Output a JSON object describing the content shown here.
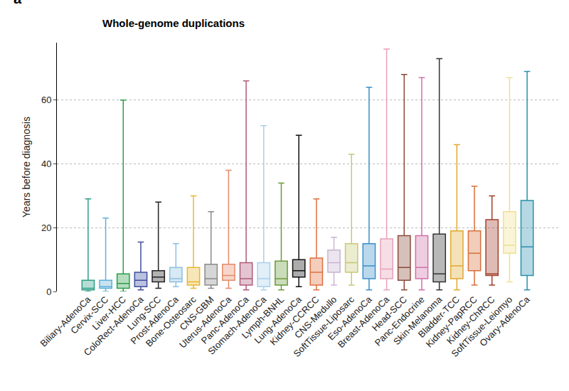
{
  "chart_data": {
    "type": "box",
    "title": "Whole-genome duplications",
    "annotations": [
      {
        "text": "a"
      }
    ],
    "y_label": "Years before diagnosis",
    "categories": [
      "Biliary-AdenoCa",
      "Cervix-SCC",
      "Liver-HCC",
      "ColoRect-AdenoCa",
      "Lung-SCC",
      "Prost-AdenoCa",
      "Bone-Osteosarc",
      "CNS-GBM",
      "Uterus-AdenoCa",
      "Panc-AdenoCa",
      "Stomach-AdenoCa",
      "Lymph-BNHL",
      "Lung-AdenoCa",
      "Kidney-CCRCC",
      "CNS-Medullo",
      "SoftTissue-Liposarc",
      "Eso-AdenoCa",
      "Breast-AdenoCa",
      "Head-SCC",
      "Panc-Endocrine",
      "Skin-Melanoma",
      "Bladder-TCC",
      "Kidney-PapRCC",
      "Kidney-ChRCC",
      "SoftTissue-Leiomyo",
      "Ovary-AdenoCa"
    ],
    "whisker_low": [
      0,
      0,
      0,
      0.5,
      1,
      1.5,
      1,
      1,
      1,
      0.5,
      0.5,
      0.5,
      1.5,
      0.5,
      2,
      2,
      0.5,
      0.5,
      0.5,
      0.5,
      0.5,
      0.5,
      2,
      2,
      3,
      0.5
    ],
    "q1": [
      0.5,
      1,
      1,
      1.5,
      3,
      3,
      2,
      2,
      3.5,
      2,
      1.5,
      2,
      4.5,
      2,
      6,
      6,
      4,
      4,
      3.5,
      4,
      3,
      4,
      6.5,
      5,
      12,
      5
    ],
    "median": [
      1,
      1.5,
      2.5,
      3.5,
      4.5,
      4,
      3,
      4,
      5,
      4,
      4,
      4,
      6.5,
      6,
      9,
      9,
      8,
      7,
      7.5,
      7.5,
      5.5,
      8,
      12,
      5.5,
      14.5,
      14
    ],
    "q3": [
      3.5,
      3.5,
      5.5,
      6,
      6.5,
      7.5,
      7.5,
      8.5,
      8.5,
      9,
      9,
      9.5,
      10,
      10.5,
      13,
      15,
      15,
      16.5,
      17.5,
      17.5,
      18,
      19,
      19,
      22.5,
      25,
      28.5
    ],
    "whisker_high": [
      29,
      23,
      60,
      15.5,
      28,
      15,
      30,
      25,
      38,
      66,
      52,
      34,
      49,
      29,
      17,
      43,
      64,
      76,
      68,
      67,
      73,
      46,
      33,
      30,
      67,
      69
    ],
    "colors": [
      "#2e9e86",
      "#5fb0d8",
      "#2a9d4a",
      "#3c4f9e",
      "#222222",
      "#8cc0e0",
      "#e8b830",
      "#8a8a8a",
      "#e58a6a",
      "#b05a7a",
      "#a8d0ea",
      "#6a9a3a",
      "#111111",
      "#e07040",
      "#c8b4d0",
      "#c8c878",
      "#3a8fc8",
      "#e8a0b8",
      "#8a4a3a",
      "#d070a8",
      "#333333",
      "#e0a830",
      "#d8703a",
      "#a0402a",
      "#f0e090",
      "#2a8fb0"
    ],
    "ylim": [
      0,
      78
    ],
    "yticks": [
      0,
      20,
      40,
      60
    ],
    "grid": true
  }
}
